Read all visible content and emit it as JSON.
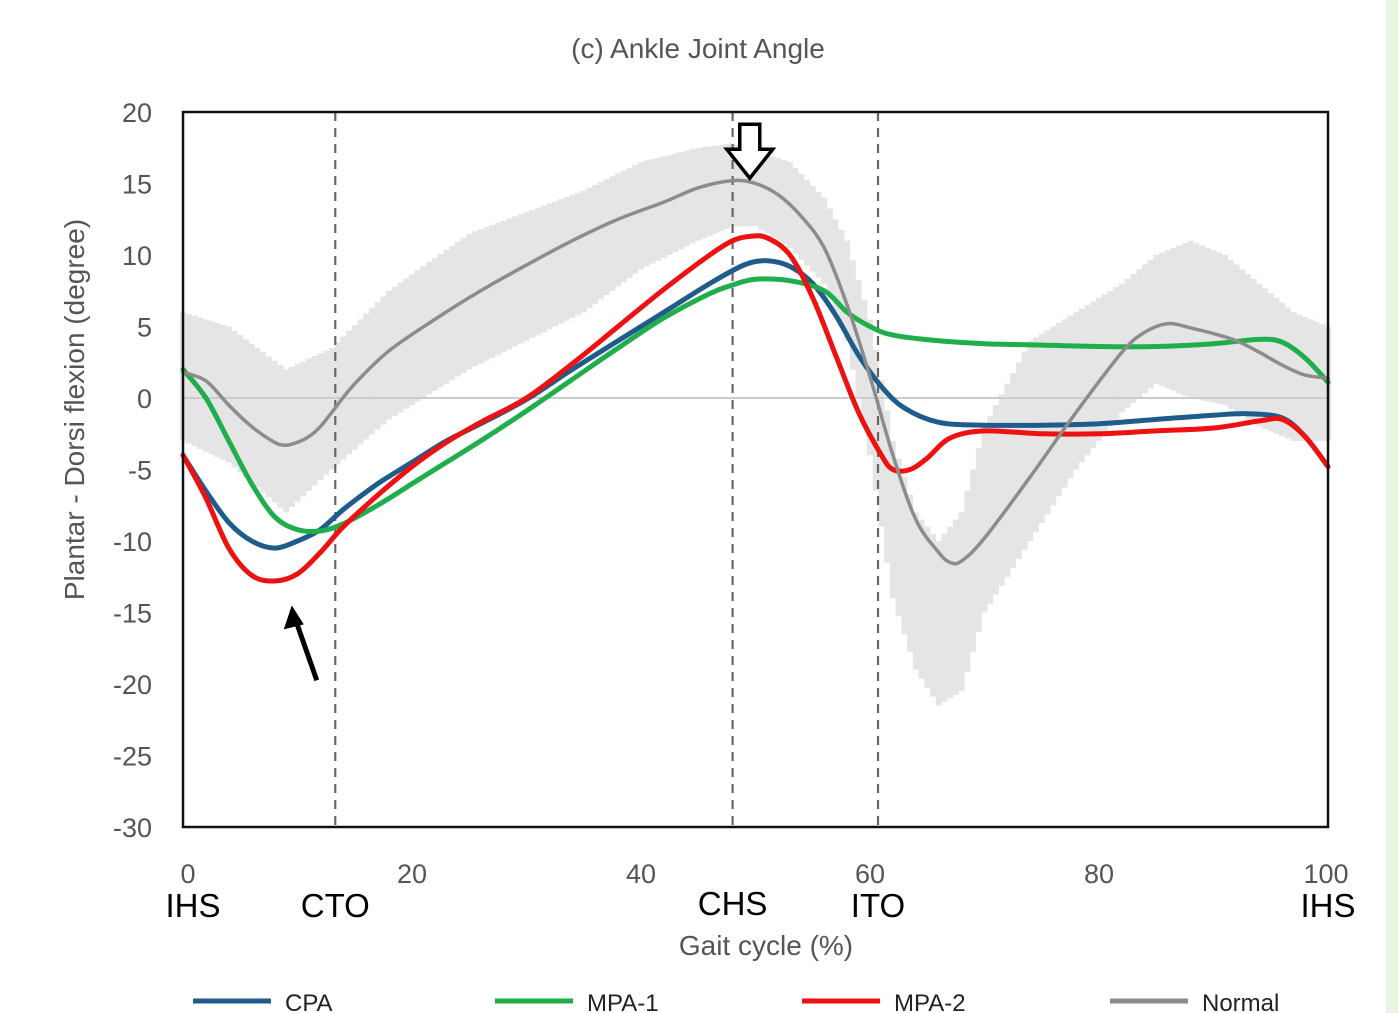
{
  "chart_data": {
    "type": "line",
    "title": "(c) Ankle Joint Angle",
    "xlabel": "Gait cycle (%)",
    "ylabel": "Plantar - Dorsi flexion (degree)",
    "xlim": [
      0,
      100
    ],
    "ylim": [
      -30,
      20
    ],
    "x_ticks": [
      0,
      20,
      40,
      60,
      80,
      100
    ],
    "y_ticks": [
      20,
      15,
      10,
      5,
      0,
      -5,
      -10,
      -15,
      -20,
      -25,
      -30
    ],
    "phase_events": [
      {
        "label": "IHS",
        "x": 0,
        "dashed": false
      },
      {
        "label": "CTO",
        "x": 13.3,
        "dashed": true
      },
      {
        "label": "CHS",
        "x": 48,
        "dashed": true
      },
      {
        "label": "ITO",
        "x": 60.7,
        "dashed": true
      },
      {
        "label": "IHS",
        "x": 100,
        "dashed": false
      }
    ],
    "legend_position": "bottom",
    "colors": {
      "CPA": "#1f5c8c",
      "MPA-1": "#1fae4b",
      "MPA-2": "#ee1111",
      "Normal": "#8c8c8c",
      "band": "#e2e2e2"
    },
    "normal_band": {
      "x": [
        0,
        4,
        9,
        13,
        18,
        25,
        30,
        35,
        40,
        45,
        48,
        50,
        53,
        56,
        58,
        60,
        62,
        64,
        66,
        68,
        70,
        74,
        78,
        82,
        85,
        88,
        91,
        94,
        97,
        100
      ],
      "upper": [
        6,
        5,
        2,
        3.5,
        7.5,
        11.5,
        13,
        14.5,
        16.5,
        17.5,
        17.8,
        17.3,
        16.5,
        14,
        11,
        5.5,
        -3,
        -8,
        -10,
        -8,
        -2,
        4,
        6,
        8,
        10,
        11,
        10,
        8,
        6,
        5
      ],
      "lower": [
        -3,
        -4.5,
        -8,
        -5,
        -1.5,
        2,
        4,
        6,
        9,
        11,
        12,
        12,
        10.5,
        8,
        4,
        -4,
        -14,
        -19,
        -21.5,
        -20.5,
        -15,
        -10,
        -5,
        -1,
        1,
        0,
        -0.5,
        -2,
        -3,
        -3
      ]
    },
    "series": [
      {
        "name": "CPA",
        "x": [
          0,
          2,
          4,
          6,
          8,
          10,
          12,
          14,
          17,
          20,
          23,
          26,
          30,
          34,
          38,
          42,
          46,
          49,
          51,
          53,
          55,
          57,
          59,
          61,
          63,
          66,
          70,
          75,
          80,
          85,
          90,
          93,
          96,
          98,
          100
        ],
        "y": [
          -4,
          -6.5,
          -8.7,
          -10,
          -10.5,
          -10,
          -9.2,
          -7.8,
          -6,
          -4.5,
          -3,
          -1.8,
          -0.1,
          2,
          4,
          6,
          8,
          9.3,
          9.6,
          9.2,
          8,
          5.8,
          3,
          0.8,
          -0.7,
          -1.7,
          -1.9,
          -1.9,
          -1.8,
          -1.5,
          -1.2,
          -1.1,
          -1.4,
          -2.7,
          -4.8
        ]
      },
      {
        "name": "MPA-1",
        "x": [
          0,
          2,
          4,
          6,
          8,
          10,
          12,
          14,
          17,
          20,
          23,
          26,
          30,
          34,
          38,
          42,
          46,
          48,
          50,
          53,
          56,
          58,
          60,
          62,
          66,
          70,
          75,
          80,
          85,
          90,
          94,
          96,
          98,
          100
        ],
        "y": [
          2,
          0,
          -3,
          -6,
          -8.3,
          -9.2,
          -9.3,
          -8.8,
          -7.5,
          -6,
          -4.5,
          -3,
          -0.9,
          1.3,
          3.5,
          5.6,
          7.3,
          7.9,
          8.3,
          8.2,
          7.5,
          6,
          5,
          4.4,
          4,
          3.8,
          3.7,
          3.6,
          3.6,
          3.8,
          4.1,
          3.9,
          2.8,
          1.1
        ]
      },
      {
        "name": "MPA-2",
        "x": [
          0,
          2,
          4,
          6,
          8,
          10,
          12,
          14,
          17,
          20,
          23,
          26,
          30,
          34,
          38,
          42,
          46,
          48,
          49.5,
          51,
          53,
          55,
          57,
          59,
          61,
          62,
          63.5,
          65,
          67,
          70,
          75,
          80,
          85,
          90,
          94,
          96,
          98,
          100
        ],
        "y": [
          -4,
          -7,
          -10.5,
          -12.4,
          -12.8,
          -12.3,
          -10.8,
          -9,
          -6.8,
          -4.8,
          -3.1,
          -1.7,
          0,
          2.4,
          5,
          7.6,
          10,
          11,
          11.3,
          11.2,
          10,
          7,
          3,
          -1,
          -4,
          -5,
          -5,
          -4.2,
          -2.8,
          -2.3,
          -2.5,
          -2.5,
          -2.3,
          -2.1,
          -1.6,
          -1.5,
          -2.7,
          -4.8
        ]
      },
      {
        "name": "Normal",
        "x": [
          0,
          2,
          4,
          6,
          8,
          9,
          10,
          11,
          12,
          13,
          15,
          18,
          22,
          26,
          30,
          34,
          38,
          42,
          45,
          48,
          50,
          52,
          54,
          56,
          58,
          60,
          62,
          64,
          66,
          67,
          68,
          70,
          74,
          78,
          82,
          84,
          86,
          88,
          90,
          92,
          94,
          96,
          98,
          100
        ],
        "y": [
          1.8,
          1.2,
          -0.5,
          -2,
          -3.1,
          -3.3,
          -3.1,
          -2.7,
          -2,
          -1,
          1,
          3.3,
          5.5,
          7.5,
          9.3,
          11,
          12.5,
          13.7,
          14.7,
          15.2,
          15,
          14.2,
          12.7,
          10.5,
          6.5,
          1.5,
          -4,
          -8.5,
          -10.8,
          -11.5,
          -11.4,
          -9.8,
          -5.5,
          -1,
          3.2,
          4.6,
          5.2,
          4.9,
          4.5,
          4,
          3.2,
          2.3,
          1.6,
          1.4
        ]
      }
    ],
    "annotations": [
      {
        "type": "arrow",
        "points_to": [
          9.5,
          -14.5
        ],
        "direction": "up-left",
        "style": "solid"
      },
      {
        "type": "arrow",
        "points_to": [
          49.5,
          16
        ],
        "direction": "down",
        "style": "hollow"
      }
    ]
  }
}
